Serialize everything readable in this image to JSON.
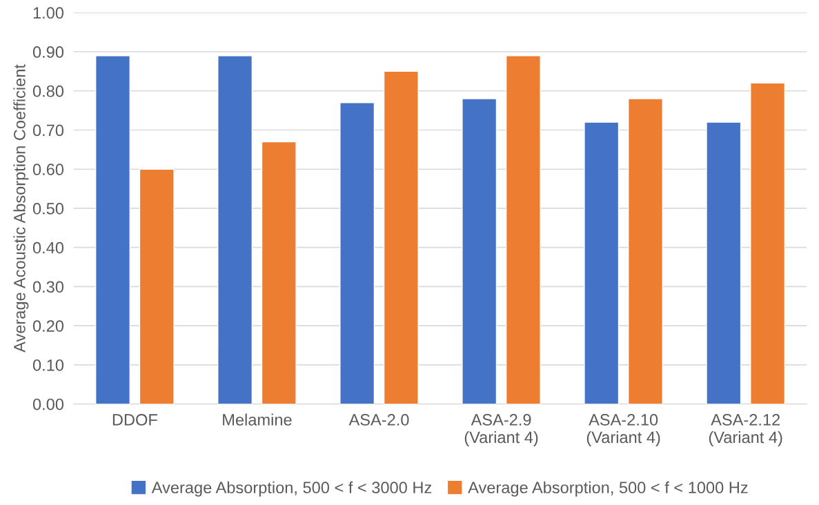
{
  "chart_data": {
    "type": "bar",
    "ylabel": "Average Acoustic Absorption Coefficient",
    "categories": [
      "DDOF",
      "Melamine",
      "ASA-2.0",
      "ASA-2.9\n(Variant 4)",
      "ASA-2.10\n(Variant 4)",
      "ASA-2.12\n(Variant 4)"
    ],
    "series": [
      {
        "name": "Average Absorption, 500 < f < 3000 Hz",
        "color": "#4472c4",
        "values": [
          0.89,
          0.89,
          0.77,
          0.78,
          0.72,
          0.72
        ]
      },
      {
        "name": "Average Absorption, 500 < f < 1000 Hz",
        "color": "#ed7d31",
        "values": [
          0.6,
          0.67,
          0.85,
          0.89,
          0.78,
          0.82
        ]
      }
    ],
    "ylim": [
      0,
      1
    ],
    "yticks": [
      {
        "value": 0,
        "label": "0.00"
      },
      {
        "value": 0.1,
        "label": "0.10"
      },
      {
        "value": 0.2,
        "label": "0.20"
      },
      {
        "value": 0.3,
        "label": "0.30"
      },
      {
        "value": 0.4,
        "label": "0.40"
      },
      {
        "value": 0.5,
        "label": "0.50"
      },
      {
        "value": 0.6,
        "label": "0.60"
      },
      {
        "value": 0.7,
        "label": "0.70"
      },
      {
        "value": 0.8,
        "label": "0.80"
      },
      {
        "value": 0.9,
        "label": "0.90"
      },
      {
        "value": 1.0,
        "label": "1.00"
      }
    ],
    "grid": "y",
    "legend": "bottom"
  }
}
